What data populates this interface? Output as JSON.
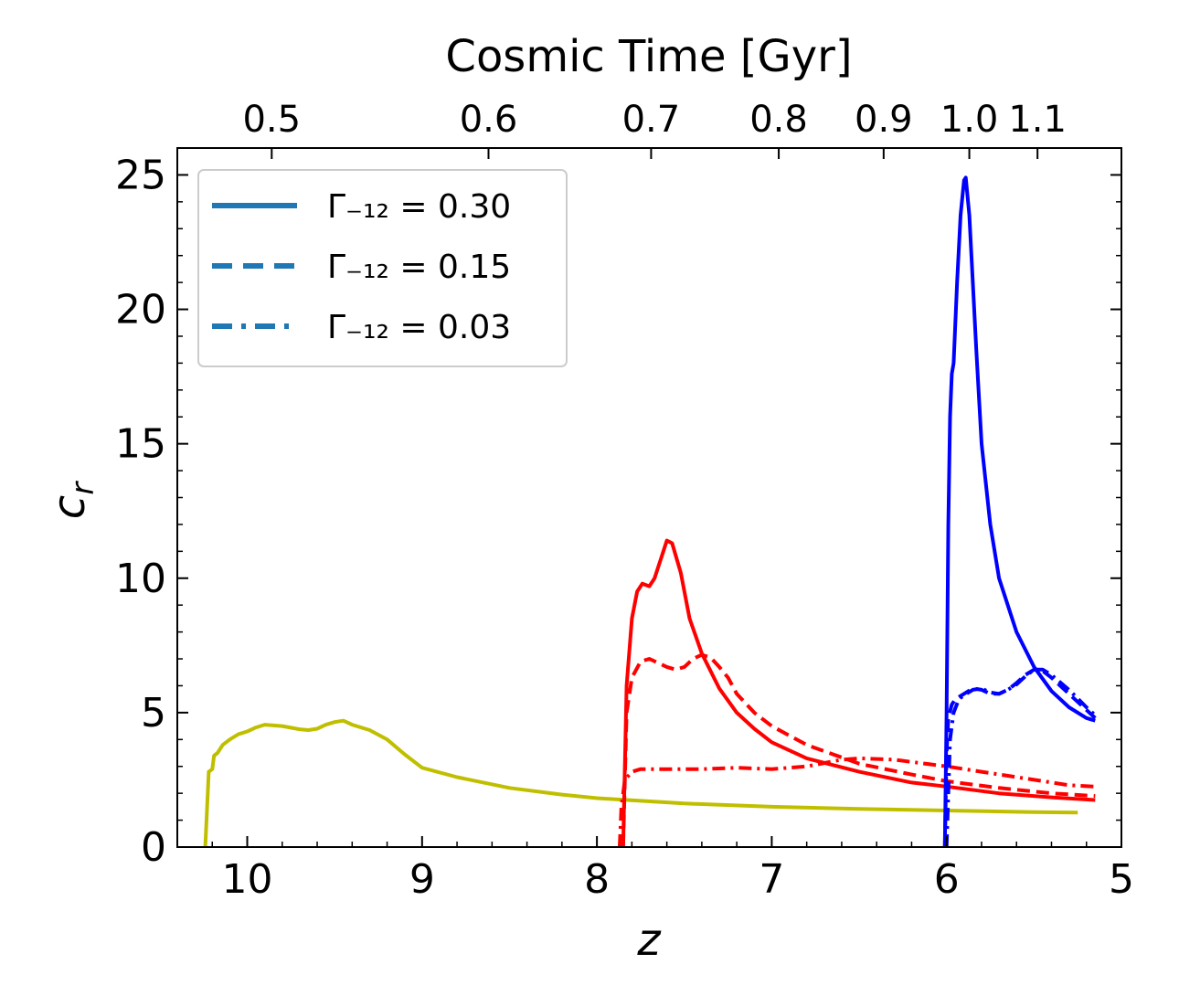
{
  "chart_data": {
    "type": "line",
    "title": "",
    "xlabel": "z",
    "ylabel": "c_r",
    "top_xlabel": "Cosmic Time [Gyr]",
    "xlim": [
      10.4,
      5.0
    ],
    "ylim": [
      0,
      26
    ],
    "x_ticks": [
      10,
      9,
      8,
      7,
      6,
      5
    ],
    "x_tick_labels": [
      "10",
      "9",
      "8",
      "7",
      "6",
      "5"
    ],
    "y_ticks": [
      0,
      5,
      10,
      15,
      20,
      25
    ],
    "y_tick_labels": [
      "0",
      "5",
      "10",
      "15",
      "20",
      "25"
    ],
    "top_ticks": [
      {
        "label": "0.5",
        "z": 9.86
      },
      {
        "label": "0.6",
        "z": 8.62
      },
      {
        "label": "0.7",
        "z": 7.69
      },
      {
        "label": "0.8",
        "z": 6.96
      },
      {
        "label": "0.9",
        "z": 6.36
      },
      {
        "label": "1.0",
        "z": 5.87
      },
      {
        "label": "1.1",
        "z": 5.48
      }
    ],
    "legend": {
      "position": "top-left",
      "color": "#1f77b4",
      "entries": [
        {
          "label": "Γ₋₁₂ = 0.30",
          "style": "solid"
        },
        {
          "label": "Γ₋₁₂ = 0.15",
          "style": "dashed"
        },
        {
          "label": "Γ₋₁₂ = 0.03",
          "style": "dashdot"
        }
      ]
    },
    "series": [
      {
        "color": "#bfbf00",
        "style": "solid",
        "points": [
          [
            10.24,
            0
          ],
          [
            10.22,
            2.8
          ],
          [
            10.2,
            2.9
          ],
          [
            10.19,
            3.4
          ],
          [
            10.17,
            3.5
          ],
          [
            10.14,
            3.8
          ],
          [
            10.1,
            4.0
          ],
          [
            10.05,
            4.2
          ],
          [
            10.0,
            4.3
          ],
          [
            9.95,
            4.45
          ],
          [
            9.9,
            4.55
          ],
          [
            9.8,
            4.5
          ],
          [
            9.7,
            4.38
          ],
          [
            9.65,
            4.35
          ],
          [
            9.6,
            4.4
          ],
          [
            9.55,
            4.55
          ],
          [
            9.5,
            4.65
          ],
          [
            9.45,
            4.7
          ],
          [
            9.4,
            4.55
          ],
          [
            9.3,
            4.35
          ],
          [
            9.2,
            4.0
          ],
          [
            9.1,
            3.45
          ],
          [
            9.0,
            2.95
          ],
          [
            8.8,
            2.6
          ],
          [
            8.5,
            2.2
          ],
          [
            8.2,
            1.95
          ],
          [
            8.0,
            1.82
          ],
          [
            7.5,
            1.62
          ],
          [
            7.0,
            1.5
          ],
          [
            6.5,
            1.42
          ],
          [
            6.0,
            1.36
          ],
          [
            5.5,
            1.3
          ],
          [
            5.25,
            1.28
          ]
        ]
      },
      {
        "color": "#ff0000",
        "style": "solid",
        "points": [
          [
            7.85,
            0
          ],
          [
            7.84,
            3.0
          ],
          [
            7.83,
            6.0
          ],
          [
            7.8,
            8.5
          ],
          [
            7.77,
            9.5
          ],
          [
            7.74,
            9.8
          ],
          [
            7.7,
            9.7
          ],
          [
            7.67,
            10.0
          ],
          [
            7.63,
            10.8
          ],
          [
            7.6,
            11.4
          ],
          [
            7.57,
            11.3
          ],
          [
            7.52,
            10.2
          ],
          [
            7.47,
            8.5
          ],
          [
            7.4,
            7.2
          ],
          [
            7.3,
            5.9
          ],
          [
            7.2,
            5.0
          ],
          [
            7.1,
            4.4
          ],
          [
            7.0,
            3.9
          ],
          [
            6.8,
            3.3
          ],
          [
            6.5,
            2.8
          ],
          [
            6.2,
            2.4
          ],
          [
            6.0,
            2.25
          ],
          [
            5.7,
            2.0
          ],
          [
            5.4,
            1.85
          ],
          [
            5.15,
            1.75
          ]
        ]
      },
      {
        "color": "#ff0000",
        "style": "dashed",
        "points": [
          [
            7.85,
            0
          ],
          [
            7.84,
            2.5
          ],
          [
            7.83,
            5.0
          ],
          [
            7.8,
            6.3
          ],
          [
            7.75,
            6.9
          ],
          [
            7.7,
            7.0
          ],
          [
            7.65,
            6.85
          ],
          [
            7.6,
            6.7
          ],
          [
            7.55,
            6.6
          ],
          [
            7.5,
            6.7
          ],
          [
            7.45,
            7.0
          ],
          [
            7.4,
            7.15
          ],
          [
            7.35,
            7.05
          ],
          [
            7.3,
            6.7
          ],
          [
            7.25,
            6.3
          ],
          [
            7.2,
            5.7
          ],
          [
            7.1,
            5.0
          ],
          [
            7.0,
            4.5
          ],
          [
            6.8,
            3.8
          ],
          [
            6.5,
            3.1
          ],
          [
            6.2,
            2.7
          ],
          [
            6.0,
            2.45
          ],
          [
            5.7,
            2.2
          ],
          [
            5.4,
            2.0
          ],
          [
            5.15,
            1.9
          ]
        ]
      },
      {
        "color": "#ff0000",
        "style": "dashdot",
        "points": [
          [
            7.87,
            0
          ],
          [
            7.86,
            1.5
          ],
          [
            7.84,
            2.5
          ],
          [
            7.8,
            2.8
          ],
          [
            7.75,
            2.9
          ],
          [
            7.6,
            2.9
          ],
          [
            7.4,
            2.9
          ],
          [
            7.2,
            2.95
          ],
          [
            7.0,
            2.9
          ],
          [
            6.8,
            3.0
          ],
          [
            6.6,
            3.25
          ],
          [
            6.5,
            3.3
          ],
          [
            6.3,
            3.25
          ],
          [
            6.0,
            3.0
          ],
          [
            5.8,
            2.8
          ],
          [
            5.5,
            2.5
          ],
          [
            5.3,
            2.3
          ],
          [
            5.15,
            2.25
          ]
        ]
      },
      {
        "color": "#0000ff",
        "style": "solid",
        "points": [
          [
            6.01,
            0
          ],
          [
            6.0,
            5.0
          ],
          [
            5.99,
            12.0
          ],
          [
            5.98,
            16.0
          ],
          [
            5.97,
            17.6
          ],
          [
            5.96,
            18.0
          ],
          [
            5.94,
            21.0
          ],
          [
            5.92,
            23.5
          ],
          [
            5.9,
            24.8
          ],
          [
            5.89,
            24.9
          ],
          [
            5.87,
            23.5
          ],
          [
            5.85,
            21.0
          ],
          [
            5.83,
            18.5
          ],
          [
            5.8,
            15.0
          ],
          [
            5.75,
            12.0
          ],
          [
            5.7,
            10.0
          ],
          [
            5.6,
            8.0
          ],
          [
            5.5,
            6.7
          ],
          [
            5.4,
            5.8
          ],
          [
            5.3,
            5.2
          ],
          [
            5.2,
            4.8
          ],
          [
            5.15,
            4.7
          ]
        ]
      },
      {
        "color": "#0000ff",
        "style": "dashed",
        "points": [
          [
            6.01,
            0
          ],
          [
            6.0,
            3.5
          ],
          [
            5.99,
            4.8
          ],
          [
            5.97,
            5.3
          ],
          [
            5.95,
            5.5
          ],
          [
            5.9,
            5.7
          ],
          [
            5.85,
            5.9
          ],
          [
            5.8,
            5.85
          ],
          [
            5.75,
            5.7
          ],
          [
            5.7,
            5.7
          ],
          [
            5.65,
            5.85
          ],
          [
            5.6,
            6.1
          ],
          [
            5.55,
            6.4
          ],
          [
            5.5,
            6.6
          ],
          [
            5.45,
            6.55
          ],
          [
            5.4,
            6.3
          ],
          [
            5.3,
            5.7
          ],
          [
            5.2,
            5.1
          ],
          [
            5.15,
            4.8
          ]
        ]
      },
      {
        "color": "#0000ff",
        "style": "dashdot",
        "points": [
          [
            6.0,
            0
          ],
          [
            5.99,
            2.0
          ],
          [
            5.98,
            4.0
          ],
          [
            5.96,
            5.0
          ],
          [
            5.93,
            5.5
          ],
          [
            5.9,
            5.65
          ],
          [
            5.85,
            5.85
          ],
          [
            5.8,
            5.9
          ],
          [
            5.75,
            5.75
          ],
          [
            5.7,
            5.7
          ],
          [
            5.65,
            5.85
          ],
          [
            5.6,
            6.05
          ],
          [
            5.55,
            6.35
          ],
          [
            5.5,
            6.6
          ],
          [
            5.45,
            6.6
          ],
          [
            5.4,
            6.4
          ],
          [
            5.3,
            5.85
          ],
          [
            5.2,
            5.2
          ],
          [
            5.15,
            4.9
          ]
        ]
      }
    ]
  }
}
